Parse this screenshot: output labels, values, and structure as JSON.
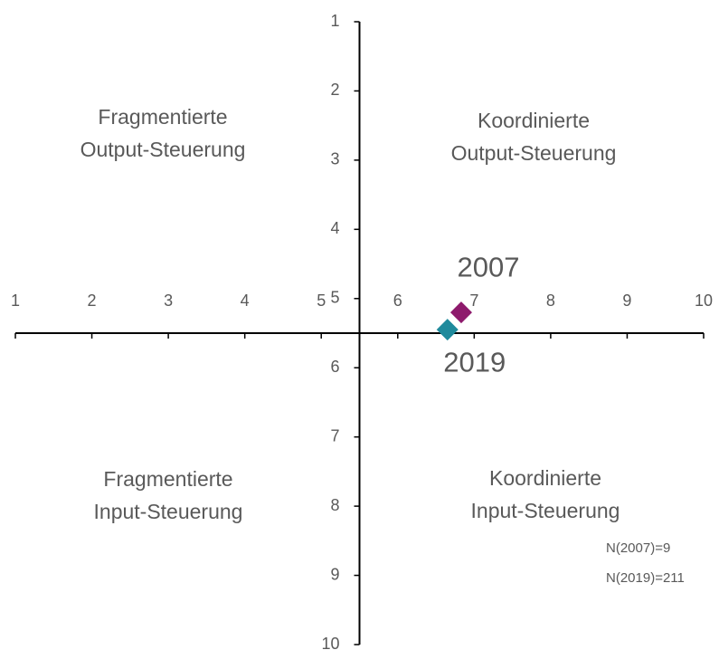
{
  "chart_data": {
    "type": "scatter",
    "xlim": [
      1,
      10
    ],
    "ylim": [
      1,
      10
    ],
    "y_inverted": true,
    "xticks": [
      1,
      2,
      3,
      4,
      5,
      6,
      7,
      8,
      9,
      10
    ],
    "yticks": [
      1,
      2,
      3,
      4,
      5,
      6,
      7,
      8,
      9,
      10
    ],
    "x_axis_crosses": 5.5,
    "y_axis_crosses": 5.5,
    "series": [
      {
        "name": "2007",
        "color": "#8e1a6c",
        "x": [
          6.83
        ],
        "values": [
          5.2
        ]
      },
      {
        "name": "2019",
        "color": "#1f8a9c",
        "x": [
          6.65
        ],
        "values": [
          5.45
        ]
      }
    ],
    "quadrant_labels": [
      [
        "Fragmentierte",
        "Output-Steuerung"
      ],
      [
        "Koordinierte",
        "Output-Steuerung"
      ],
      [
        "Fragmentierte",
        "Input-Steuerung"
      ],
      [
        "Koordinierte",
        "Input-Steuerung"
      ]
    ],
    "notes": [
      "N(2007)=9",
      "N(2019)=211"
    ]
  }
}
